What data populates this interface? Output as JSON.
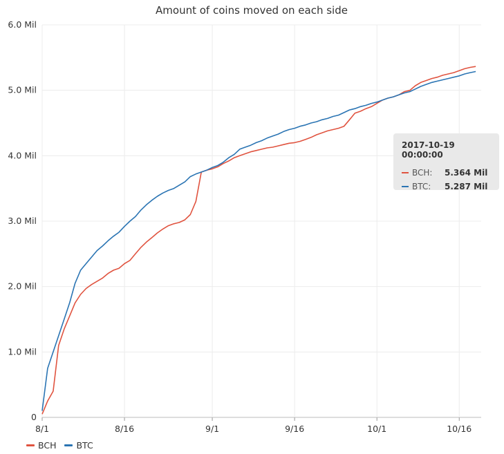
{
  "chart_data": {
    "type": "line",
    "title": "Amount of coins moved on each side",
    "xlabel": "",
    "ylabel": "",
    "ylim": [
      0,
      6.0
    ],
    "y_unit": "Mil",
    "y_ticks": [
      {
        "value": 0,
        "label": "0"
      },
      {
        "value": 1.0,
        "label": "1.0 Mil"
      },
      {
        "value": 2.0,
        "label": "2.0 Mil"
      },
      {
        "value": 3.0,
        "label": "3.0 Mil"
      },
      {
        "value": 4.0,
        "label": "4.0 Mil"
      },
      {
        "value": 5.0,
        "label": "5.0 Mil"
      },
      {
        "value": 6.0,
        "label": "6.0 Mil"
      }
    ],
    "x_ticks": [
      {
        "date": "2017-08-01",
        "label": "8/1"
      },
      {
        "date": "2017-08-16",
        "label": "8/16"
      },
      {
        "date": "2017-09-01",
        "label": "9/1"
      },
      {
        "date": "2017-09-16",
        "label": "9/16"
      },
      {
        "date": "2017-10-01",
        "label": "10/1"
      },
      {
        "date": "2017-10-16",
        "label": "10/16"
      }
    ],
    "xlim": [
      "2017-08-01",
      "2017-10-20"
    ],
    "grid": true,
    "legend_position": "bottom-left",
    "series": [
      {
        "name": "BCH",
        "color": "#e0533f",
        "points": [
          [
            "2017-08-01",
            0.05
          ],
          [
            "2017-08-02",
            0.25
          ],
          [
            "2017-08-03",
            0.4
          ],
          [
            "2017-08-04",
            1.1
          ],
          [
            "2017-08-05",
            1.35
          ],
          [
            "2017-08-06",
            1.55
          ],
          [
            "2017-08-07",
            1.75
          ],
          [
            "2017-08-08",
            1.88
          ],
          [
            "2017-08-09",
            1.97
          ],
          [
            "2017-08-10",
            2.03
          ],
          [
            "2017-08-11",
            2.08
          ],
          [
            "2017-08-12",
            2.13
          ],
          [
            "2017-08-13",
            2.2
          ],
          [
            "2017-08-14",
            2.25
          ],
          [
            "2017-08-15",
            2.28
          ],
          [
            "2017-08-16",
            2.35
          ],
          [
            "2017-08-17",
            2.4
          ],
          [
            "2017-08-18",
            2.5
          ],
          [
            "2017-08-19",
            2.6
          ],
          [
            "2017-08-20",
            2.68
          ],
          [
            "2017-08-21",
            2.75
          ],
          [
            "2017-08-22",
            2.82
          ],
          [
            "2017-08-23",
            2.88
          ],
          [
            "2017-08-24",
            2.93
          ],
          [
            "2017-08-25",
            2.96
          ],
          [
            "2017-08-26",
            2.98
          ],
          [
            "2017-08-27",
            3.02
          ],
          [
            "2017-08-28",
            3.1
          ],
          [
            "2017-08-29",
            3.3
          ],
          [
            "2017-08-30",
            3.75
          ],
          [
            "2017-08-31",
            3.78
          ],
          [
            "2017-09-01",
            3.8
          ],
          [
            "2017-09-02",
            3.83
          ],
          [
            "2017-09-03",
            3.88
          ],
          [
            "2017-09-04",
            3.92
          ],
          [
            "2017-09-05",
            3.97
          ],
          [
            "2017-09-06",
            4.0
          ],
          [
            "2017-09-07",
            4.03
          ],
          [
            "2017-09-08",
            4.06
          ],
          [
            "2017-09-09",
            4.08
          ],
          [
            "2017-09-10",
            4.1
          ],
          [
            "2017-09-11",
            4.12
          ],
          [
            "2017-09-12",
            4.13
          ],
          [
            "2017-09-13",
            4.15
          ],
          [
            "2017-09-14",
            4.17
          ],
          [
            "2017-09-15",
            4.19
          ],
          [
            "2017-09-16",
            4.2
          ],
          [
            "2017-09-17",
            4.22
          ],
          [
            "2017-09-18",
            4.25
          ],
          [
            "2017-09-19",
            4.28
          ],
          [
            "2017-09-20",
            4.32
          ],
          [
            "2017-09-21",
            4.35
          ],
          [
            "2017-09-22",
            4.38
          ],
          [
            "2017-09-23",
            4.4
          ],
          [
            "2017-09-24",
            4.42
          ],
          [
            "2017-09-25",
            4.45
          ],
          [
            "2017-09-26",
            4.55
          ],
          [
            "2017-09-27",
            4.65
          ],
          [
            "2017-09-28",
            4.68
          ],
          [
            "2017-09-29",
            4.72
          ],
          [
            "2017-09-30",
            4.75
          ],
          [
            "2017-10-01",
            4.8
          ],
          [
            "2017-10-02",
            4.85
          ],
          [
            "2017-10-03",
            4.88
          ],
          [
            "2017-10-04",
            4.9
          ],
          [
            "2017-10-05",
            4.93
          ],
          [
            "2017-10-06",
            4.98
          ],
          [
            "2017-10-07",
            5.0
          ],
          [
            "2017-10-08",
            5.07
          ],
          [
            "2017-10-09",
            5.12
          ],
          [
            "2017-10-10",
            5.15
          ],
          [
            "2017-10-11",
            5.18
          ],
          [
            "2017-10-12",
            5.2
          ],
          [
            "2017-10-13",
            5.23
          ],
          [
            "2017-10-14",
            5.25
          ],
          [
            "2017-10-15",
            5.27
          ],
          [
            "2017-10-16",
            5.3
          ],
          [
            "2017-10-17",
            5.33
          ],
          [
            "2017-10-18",
            5.35
          ],
          [
            "2017-10-19",
            5.364
          ]
        ]
      },
      {
        "name": "BTC",
        "color": "#2a74b3",
        "points": [
          [
            "2017-08-01",
            0.1
          ],
          [
            "2017-08-02",
            0.75
          ],
          [
            "2017-08-03",
            1.0
          ],
          [
            "2017-08-04",
            1.25
          ],
          [
            "2017-08-05",
            1.5
          ],
          [
            "2017-08-06",
            1.75
          ],
          [
            "2017-08-07",
            2.05
          ],
          [
            "2017-08-08",
            2.25
          ],
          [
            "2017-08-09",
            2.35
          ],
          [
            "2017-08-10",
            2.45
          ],
          [
            "2017-08-11",
            2.55
          ],
          [
            "2017-08-12",
            2.62
          ],
          [
            "2017-08-13",
            2.7
          ],
          [
            "2017-08-14",
            2.77
          ],
          [
            "2017-08-15",
            2.83
          ],
          [
            "2017-08-16",
            2.92
          ],
          [
            "2017-08-17",
            3.0
          ],
          [
            "2017-08-18",
            3.07
          ],
          [
            "2017-08-19",
            3.17
          ],
          [
            "2017-08-20",
            3.25
          ],
          [
            "2017-08-21",
            3.32
          ],
          [
            "2017-08-22",
            3.38
          ],
          [
            "2017-08-23",
            3.43
          ],
          [
            "2017-08-24",
            3.47
          ],
          [
            "2017-08-25",
            3.5
          ],
          [
            "2017-08-26",
            3.55
          ],
          [
            "2017-08-27",
            3.6
          ],
          [
            "2017-08-28",
            3.68
          ],
          [
            "2017-08-29",
            3.72
          ],
          [
            "2017-08-30",
            3.75
          ],
          [
            "2017-08-31",
            3.78
          ],
          [
            "2017-09-01",
            3.82
          ],
          [
            "2017-09-02",
            3.85
          ],
          [
            "2017-09-03",
            3.9
          ],
          [
            "2017-09-04",
            3.97
          ],
          [
            "2017-09-05",
            4.02
          ],
          [
            "2017-09-06",
            4.1
          ],
          [
            "2017-09-07",
            4.13
          ],
          [
            "2017-09-08",
            4.16
          ],
          [
            "2017-09-09",
            4.2
          ],
          [
            "2017-09-10",
            4.23
          ],
          [
            "2017-09-11",
            4.27
          ],
          [
            "2017-09-12",
            4.3
          ],
          [
            "2017-09-13",
            4.33
          ],
          [
            "2017-09-14",
            4.37
          ],
          [
            "2017-09-15",
            4.4
          ],
          [
            "2017-09-16",
            4.42
          ],
          [
            "2017-09-17",
            4.45
          ],
          [
            "2017-09-18",
            4.47
          ],
          [
            "2017-09-19",
            4.5
          ],
          [
            "2017-09-20",
            4.52
          ],
          [
            "2017-09-21",
            4.55
          ],
          [
            "2017-09-22",
            4.57
          ],
          [
            "2017-09-23",
            4.6
          ],
          [
            "2017-09-24",
            4.62
          ],
          [
            "2017-09-25",
            4.66
          ],
          [
            "2017-09-26",
            4.7
          ],
          [
            "2017-09-27",
            4.72
          ],
          [
            "2017-09-28",
            4.75
          ],
          [
            "2017-09-29",
            4.77
          ],
          [
            "2017-09-30",
            4.8
          ],
          [
            "2017-10-01",
            4.82
          ],
          [
            "2017-10-02",
            4.85
          ],
          [
            "2017-10-03",
            4.88
          ],
          [
            "2017-10-04",
            4.9
          ],
          [
            "2017-10-05",
            4.93
          ],
          [
            "2017-10-06",
            4.96
          ],
          [
            "2017-10-07",
            4.98
          ],
          [
            "2017-10-08",
            5.02
          ],
          [
            "2017-10-09",
            5.06
          ],
          [
            "2017-10-10",
            5.09
          ],
          [
            "2017-10-11",
            5.12
          ],
          [
            "2017-10-12",
            5.14
          ],
          [
            "2017-10-13",
            5.16
          ],
          [
            "2017-10-14",
            5.18
          ],
          [
            "2017-10-15",
            5.2
          ],
          [
            "2017-10-16",
            5.22
          ],
          [
            "2017-10-17",
            5.25
          ],
          [
            "2017-10-18",
            5.27
          ],
          [
            "2017-10-19",
            5.287
          ]
        ]
      }
    ],
    "tooltip": {
      "header": "2017-10-19 00:00:00",
      "rows": [
        {
          "name": "BCH:",
          "value": "5.364 Mil",
          "color": "#e0533f"
        },
        {
          "name": "BTC:",
          "value": "5.287 Mil",
          "color": "#2a74b3"
        }
      ]
    },
    "legend": [
      {
        "name": "BCH",
        "color": "#e0533f"
      },
      {
        "name": "BTC",
        "color": "#2a74b3"
      }
    ]
  }
}
